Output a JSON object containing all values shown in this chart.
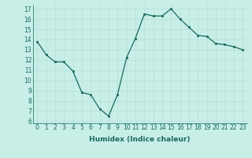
{
  "x": [
    0,
    1,
    2,
    3,
    4,
    5,
    6,
    7,
    8,
    9,
    10,
    11,
    12,
    13,
    14,
    15,
    16,
    17,
    18,
    19,
    20,
    21,
    22,
    23
  ],
  "y": [
    13.8,
    12.5,
    11.8,
    11.8,
    10.9,
    8.8,
    8.6,
    7.2,
    6.5,
    8.6,
    12.2,
    14.1,
    16.5,
    16.3,
    16.3,
    17.0,
    16.0,
    15.2,
    14.4,
    14.3,
    13.6,
    13.5,
    13.3,
    13.0
  ],
  "xlabel": "Humidex (Indice chaleur)",
  "bg_color": "#c8eee8",
  "line_color": "#1a6b5a",
  "marker_color": "#1a6b5a",
  "grid_color": "#b8ddd8",
  "ylim": [
    5.8,
    17.4
  ],
  "xlim": [
    -0.5,
    23.5
  ],
  "yticks": [
    6,
    7,
    8,
    9,
    10,
    11,
    12,
    13,
    14,
    15,
    16,
    17
  ],
  "xticks": [
    0,
    1,
    2,
    3,
    4,
    5,
    6,
    7,
    8,
    9,
    10,
    11,
    12,
    13,
    14,
    15,
    16,
    17,
    18,
    19,
    20,
    21,
    22,
    23
  ],
  "tick_fontsize": 5.5,
  "xlabel_fontsize": 6.5
}
